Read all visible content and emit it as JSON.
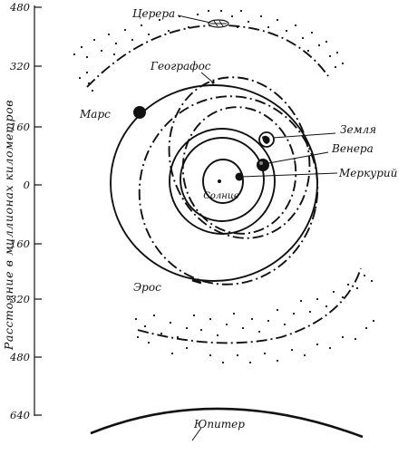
{
  "axis": {
    "title": "Расстояние в миллионах километров",
    "ticks": [
      "480",
      "320",
      "160",
      "0",
      "160",
      "320",
      "480",
      "640"
    ]
  },
  "labels": {
    "sun": "Солнце",
    "mercury": "Меркурий",
    "venus": "Венера",
    "earth": "Земля",
    "mars": "Марс",
    "ceres": "Церера",
    "geographos": "Географос",
    "eros": "Эрос",
    "jupiter": "Юпитер"
  },
  "colors": {
    "ink": "#111111",
    "background": "#ffffff"
  }
}
